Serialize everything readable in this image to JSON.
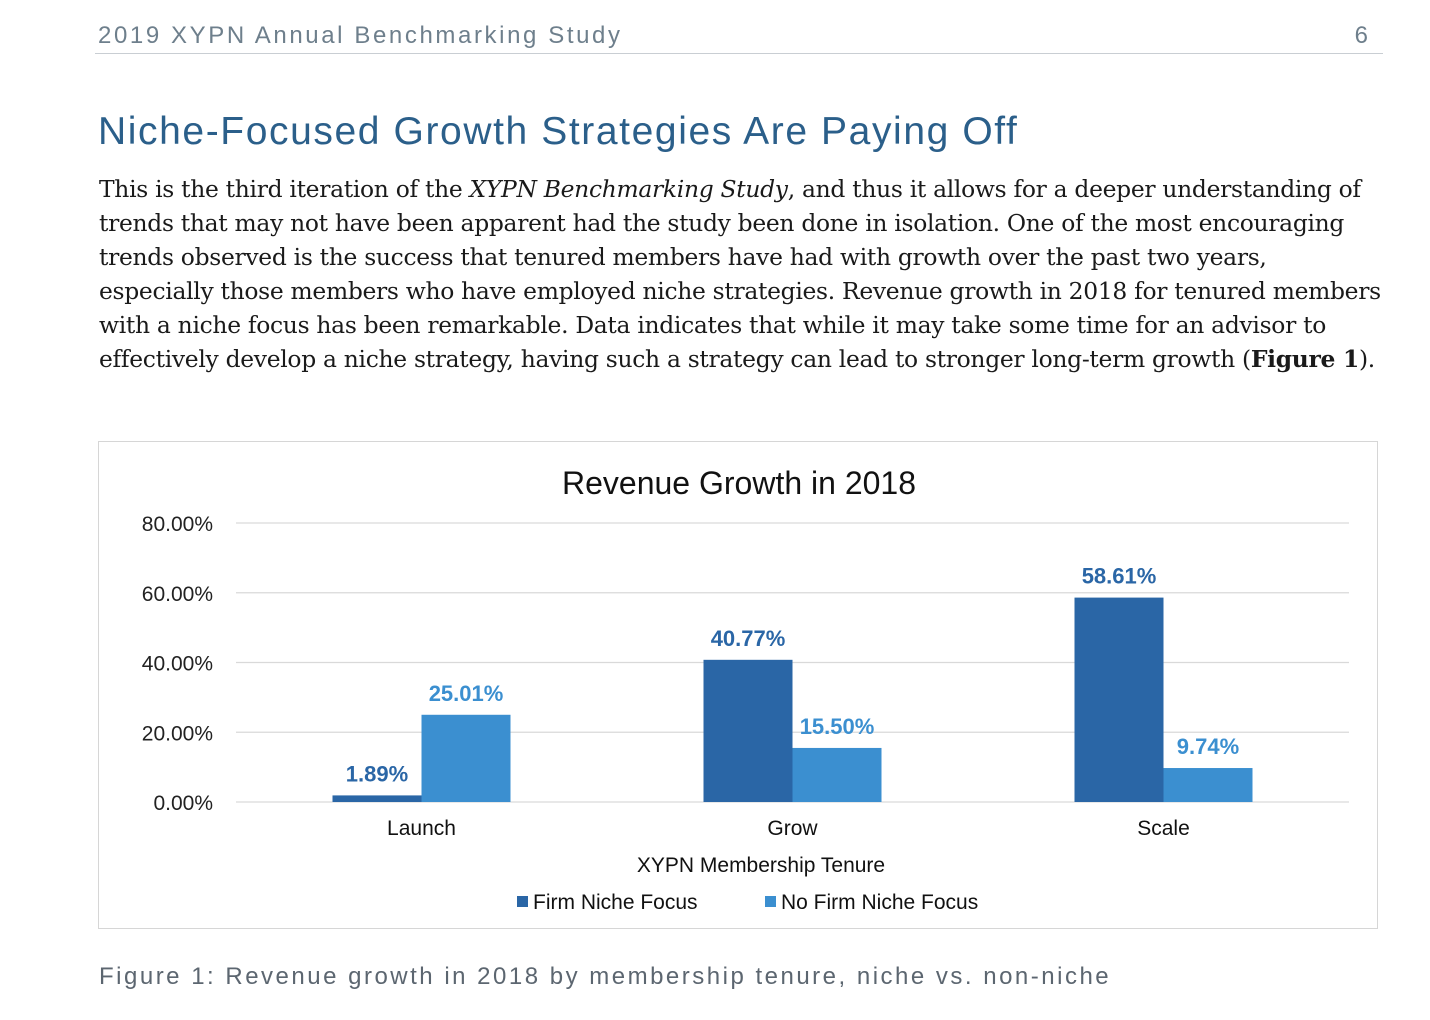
{
  "header": {
    "title": "2019 XYPN Annual Benchmarking Study",
    "page_number": "6"
  },
  "section": {
    "heading": "Niche-Focused Growth Strategies Are Paying Off"
  },
  "paragraph": {
    "part1": "This is the third iteration of the ",
    "study_name": "XYPN Benchmarking Study",
    "part2": ", and thus it allows for a deeper understanding of trends that may not have been apparent had the study been done in isolation. One of the most encouraging trends observed is the success that tenured members have had with growth over the past two years, especially those members who have employed niche strategies. Revenue growth in 2018 for tenured members with a niche focus has been remarkable. Data indicates that while it may take some time for an advisor to effectively develop a niche strategy, having such a strategy can lead to stronger long-term growth (",
    "figure_ref": "Figure 1",
    "part3": ")."
  },
  "chart_data": {
    "type": "bar",
    "title": "Revenue Growth in 2018",
    "xlabel": "XYPN Membership Tenure",
    "ylabel": "",
    "categories": [
      "Launch",
      "Grow",
      "Scale"
    ],
    "series": [
      {
        "name": "Firm Niche Focus",
        "values": [
          1.89,
          40.77,
          58.61
        ],
        "labels": [
          "1.89%",
          "40.77%",
          "58.61%"
        ],
        "color": "#2a66a6"
      },
      {
        "name": "No Firm Niche Focus",
        "values": [
          25.01,
          15.5,
          9.74
        ],
        "labels": [
          "25.01%",
          "15.50%",
          "9.74%"
        ],
        "color": "#3b8fd0"
      }
    ],
    "ylim": [
      0,
      80
    ],
    "yticks": [
      0,
      20,
      40,
      60,
      80
    ],
    "ytick_labels": [
      "0.00%",
      "20.00%",
      "40.00%",
      "60.00%",
      "80.00%"
    ],
    "grid": true,
    "legend_position": "bottom"
  },
  "caption": "Figure 1: Revenue growth in 2018 by membership tenure, niche vs. non-niche"
}
